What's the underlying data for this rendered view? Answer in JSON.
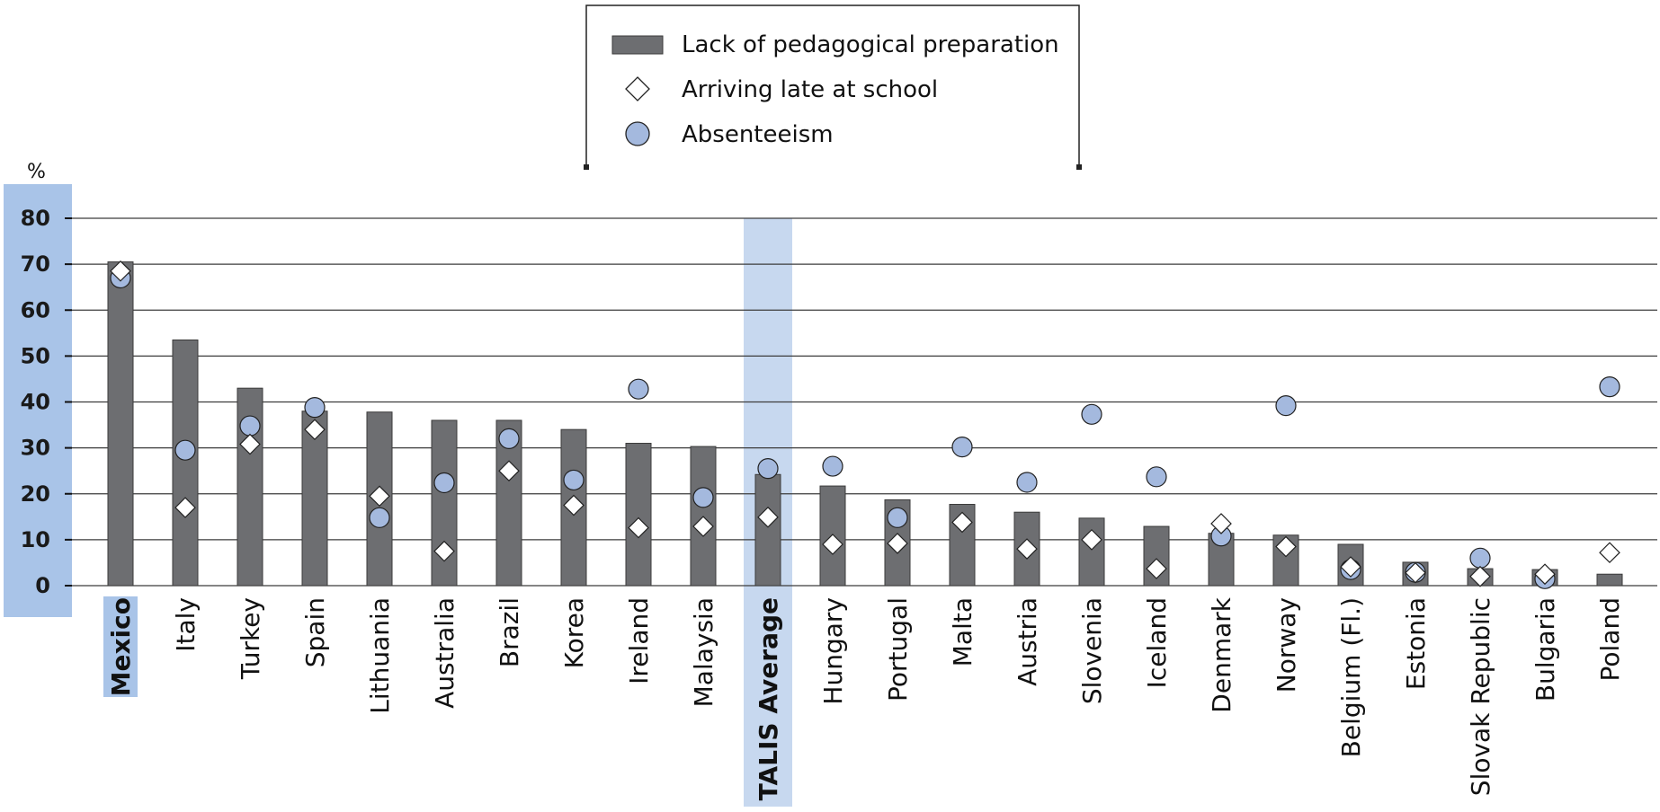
{
  "chart_data": {
    "type": "bar",
    "ylabel": "%",
    "ylim": [
      0,
      80
    ],
    "yticks": [
      0,
      10,
      20,
      30,
      40,
      50,
      60,
      70,
      80
    ],
    "grid": true,
    "legend_position": "top-center",
    "highlighted_categories": [
      "Mexico",
      "TALIS Average"
    ],
    "categories": [
      "Mexico",
      "Italy",
      "Turkey",
      "Spain",
      "Lithuania",
      "Australia",
      "Brazil",
      "Korea",
      "Ireland",
      "Malaysia",
      "TALIS Average",
      "Hungary",
      "Portugal",
      "Malta",
      "Austria",
      "Slovenia",
      "Iceland",
      "Denmark",
      "Norway",
      "Belgium (Fl.)",
      "Estonia",
      "Slovak Republic",
      "Bulgaria",
      "Poland"
    ],
    "series": [
      {
        "name": "Lack of pedagogical preparation",
        "marker": "bar",
        "values": [
          70.5,
          53.5,
          43,
          38,
          37.8,
          36,
          36,
          34,
          31,
          30.3,
          24.2,
          21.7,
          18.7,
          17.7,
          16,
          14.7,
          12.9,
          11.4,
          11,
          9,
          5.1,
          3.7,
          3.5,
          2.5
        ]
      },
      {
        "name": "Arriving late at school",
        "marker": "diamond",
        "values": [
          68.5,
          17,
          30.8,
          34,
          19.5,
          7.5,
          25,
          17.5,
          12.6,
          12.9,
          14.9,
          9,
          9.2,
          13.8,
          8,
          10,
          3.7,
          13.5,
          8.5,
          4.1,
          2.8,
          2,
          2.5,
          7.2
        ]
      },
      {
        "name": "Absenteeism",
        "marker": "circle",
        "values": [
          67,
          29.5,
          34.8,
          38.8,
          14.8,
          22.4,
          32,
          23,
          42.8,
          19.2,
          25.5,
          26,
          14.8,
          30.2,
          22.5,
          37.3,
          23.7,
          10.8,
          39.2,
          3.5,
          2.9,
          6,
          1.5,
          43.3
        ]
      }
    ]
  },
  "colors": {
    "bar_fill": "#6d6e71",
    "bar_stroke": "#3a3a3a",
    "circle_fill": "#a4b9de",
    "diamond_fill": "#ffffff",
    "highlight": "#a9c4e8",
    "highlight_light": "#c7d8ef",
    "grid": "#3c3c3c"
  }
}
